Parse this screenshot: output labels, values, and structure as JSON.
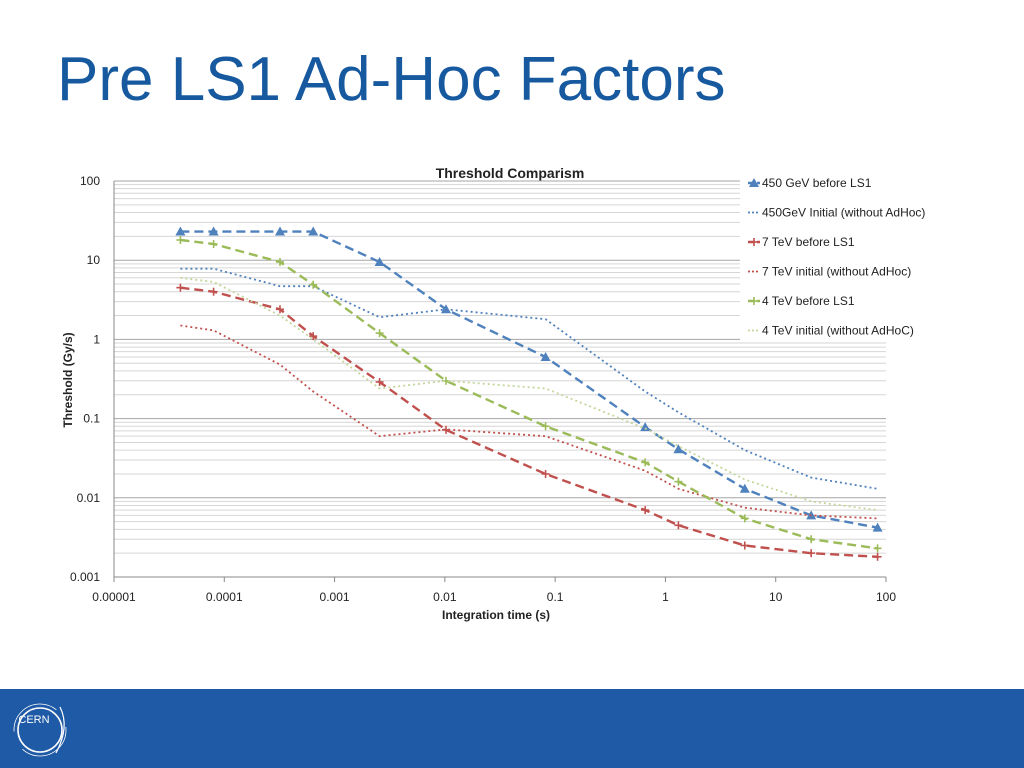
{
  "slide": {
    "title": "Pre LS1 Ad-Hoc Factors",
    "logo_text": "CERN",
    "footer_color": "#1f5aa6",
    "title_color": "#17599f"
  },
  "chart_data": {
    "type": "line",
    "title": "Threshold Comparism",
    "xlabel": "Integration time (s)",
    "ylabel": "Threshold (Gy/s)",
    "x_scale": "log",
    "y_scale": "log",
    "xlim": [
      1e-05,
      100
    ],
    "ylim": [
      0.001,
      100
    ],
    "x_ticks": [
      "0.00001",
      "0.0001",
      "0.001",
      "0.01",
      "0.1",
      "1",
      "10",
      "100"
    ],
    "y_ticks": [
      "0.001",
      "0.01",
      "0.1",
      "1",
      "10",
      "100"
    ],
    "grid": true,
    "legend_position": "right",
    "series": [
      {
        "name": "450 GeV before LS1",
        "color": "#4f81bd",
        "line": "dashed",
        "marker": "triangle",
        "x": [
          4e-05,
          8e-05,
          0.00032,
          0.00064,
          0.00256,
          0.01024,
          0.08192,
          0.655,
          1.311,
          5.243,
          20.97,
          83.89
        ],
        "y": [
          23,
          23,
          23,
          23,
          9.5,
          2.4,
          0.6,
          0.078,
          0.041,
          0.013,
          0.006,
          0.0042
        ]
      },
      {
        "name": "450GeV Initial (without AdHoc)",
        "color": "#4f81bd",
        "line": "dotted",
        "marker": "none",
        "x": [
          4e-05,
          8e-05,
          0.00032,
          0.00064,
          0.00256,
          0.01024,
          0.08192,
          0.655,
          1.311,
          5.243,
          20.97,
          83.89
        ],
        "y": [
          7.8,
          7.8,
          4.7,
          4.7,
          1.9,
          2.4,
          1.8,
          0.22,
          0.12,
          0.04,
          0.018,
          0.013
        ]
      },
      {
        "name": "7 TeV before LS1",
        "color": "#c0504d",
        "line": "dashed",
        "marker": "plus",
        "x": [
          4e-05,
          8e-05,
          0.00032,
          0.00064,
          0.00256,
          0.01024,
          0.08192,
          0.655,
          1.311,
          5.243,
          20.97,
          83.89
        ],
        "y": [
          4.5,
          4.0,
          2.4,
          1.1,
          0.29,
          0.072,
          0.02,
          0.007,
          0.0045,
          0.0025,
          0.002,
          0.0018
        ]
      },
      {
        "name": "7 TeV initial (without AdHoc)",
        "color": "#c0504d",
        "line": "dotted",
        "marker": "none",
        "x": [
          4e-05,
          8e-05,
          0.00032,
          0.00064,
          0.00256,
          0.01024,
          0.08192,
          0.655,
          1.311,
          5.243,
          20.97,
          83.89
        ],
        "y": [
          1.5,
          1.3,
          0.48,
          0.22,
          0.06,
          0.073,
          0.06,
          0.022,
          0.013,
          0.0075,
          0.006,
          0.0055
        ]
      },
      {
        "name": "4 TeV before LS1",
        "color": "#9bbb59",
        "line": "dashed",
        "marker": "plus",
        "x": [
          4e-05,
          8e-05,
          0.00032,
          0.00064,
          0.00256,
          0.01024,
          0.08192,
          0.655,
          1.311,
          5.243,
          20.97,
          83.89
        ],
        "y": [
          18,
          16,
          9.5,
          4.9,
          1.2,
          0.3,
          0.08,
          0.028,
          0.016,
          0.0055,
          0.003,
          0.0023
        ]
      },
      {
        "name": "4 TeV initial (without AdHoC)",
        "color": "#c3d69b",
        "line": "dotted",
        "marker": "none",
        "x": [
          4e-05,
          8e-05,
          0.00032,
          0.00064,
          0.00256,
          0.01024,
          0.08192,
          0.655,
          1.311,
          5.243,
          20.97,
          83.89
        ],
        "y": [
          6.0,
          5.3,
          2.0,
          1.0,
          0.24,
          0.3,
          0.24,
          0.075,
          0.045,
          0.017,
          0.009,
          0.007
        ]
      }
    ]
  }
}
